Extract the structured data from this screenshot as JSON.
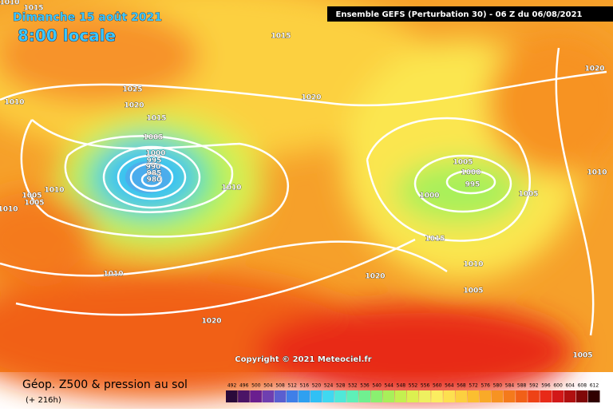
{
  "header": {
    "title": "Dimanche 15 août 2021",
    "time": "8:00 locale",
    "model": "Ensemble GEFS  (Perturbation 30)  -  06 Z du 06/08/2021"
  },
  "copyright": "Copyright © 2021 Meteociel.fr",
  "footer": {
    "title": "Géop. Z500 & pression au sol",
    "lead": "(+ 216h)"
  },
  "legend": {
    "labels": [
      492,
      496,
      500,
      504,
      508,
      512,
      516,
      520,
      524,
      528,
      532,
      536,
      540,
      544,
      548,
      552,
      556,
      560,
      564,
      568,
      572,
      576,
      580,
      584,
      588,
      592,
      596,
      600,
      604,
      608,
      612
    ],
    "colors": [
      "#2a0a3a",
      "#4b1466",
      "#6a1f8f",
      "#6f3fb0",
      "#5a5fd0",
      "#3f7fe8",
      "#2fa0f0",
      "#30c0f5",
      "#40d8f0",
      "#50e8d8",
      "#5ef0b8",
      "#70f090",
      "#8af070",
      "#a8f05a",
      "#c4f050",
      "#dcf050",
      "#eef060",
      "#fbee60",
      "#fde050",
      "#fcd040",
      "#fbbf30",
      "#f9aa28",
      "#f79322",
      "#f47a1c",
      "#f16018",
      "#ee4216",
      "#e82a18",
      "#d21818",
      "#b01010",
      "#800808",
      "#300000"
    ]
  },
  "isobars": [
    1015,
    1010,
    1015,
    1025,
    1020,
    1010,
    1020,
    1015,
    1005,
    1000,
    995,
    990,
    985,
    980,
    1010,
    1005,
    1005,
    1010,
    1010,
    1010,
    1020,
    1020,
    1005,
    1000,
    995,
    1000,
    1005,
    1010,
    1020,
    1015,
    1010,
    1005,
    1005
  ]
}
